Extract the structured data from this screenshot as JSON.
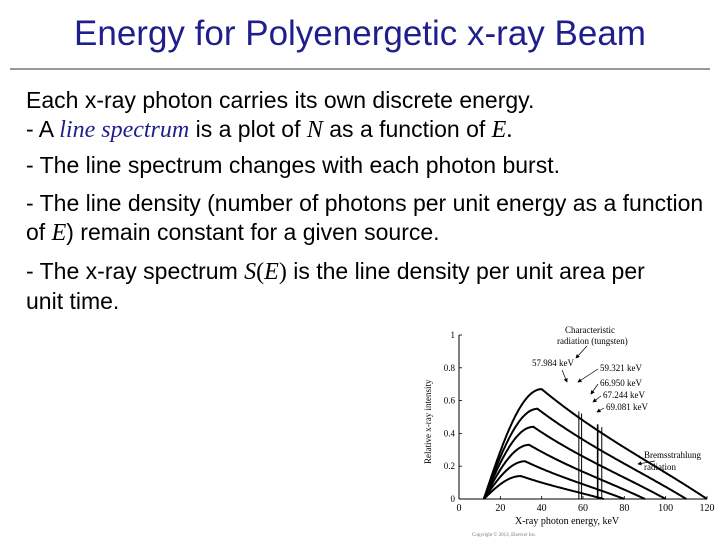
{
  "slide": {
    "title": "Energy for Polyenergetic x-ray Beam",
    "colors": {
      "title": "#1f1f8c",
      "accent": "#1f1f8c",
      "rule": "#999999"
    }
  },
  "body": {
    "p1": {
      "l1": "Each x-ray photon carries its own discrete energy.",
      "l2_a": "- A ",
      "l2_term": "line spectrum",
      "l2_b": " is a plot of ",
      "l2_N": "N",
      "l2_c": " as a function of ",
      "l2_E": "E",
      "l2_d": "."
    },
    "p2": "- The line spectrum changes with each photon burst.",
    "p3": {
      "a": "- The line density (number of photons per unit energy as a function of ",
      "E": "E",
      "b": ") remain constant for a given source."
    },
    "p4": {
      "a": "- The x-ray spectrum ",
      "S": "S",
      "paren_open": "(",
      "E": "E",
      "paren_close": ")",
      "b": " is the line density per unit area per unit time."
    }
  },
  "figure": {
    "xlabel": "X-ray photon energy, keV",
    "ylabel": "Relative x-ray intensity",
    "x_ticks": [
      "0",
      "20",
      "40",
      "60",
      "80",
      "100",
      "120"
    ],
    "y_ticks": [
      "0",
      "0.2",
      "0.4",
      "0.6",
      "0.8",
      "1"
    ],
    "annotations": {
      "characteristic_1": "Characteristic",
      "characteristic_2": "radiation (tungsten)",
      "e1": "57.984 keV",
      "e2": "59.321 keV",
      "e3": "66.950 keV",
      "e4": "67.244 keV",
      "e5": "69.081 keV",
      "brems_1": "Bremsstrahlung",
      "brems_2": "radiation"
    },
    "copyright": "Copyright © 2013, Elsevier Inc."
  },
  "chart_data": {
    "type": "line",
    "xlabel": "X-ray photon energy, keV",
    "ylabel": "Relative x-ray intensity",
    "xlim": [
      0,
      120
    ],
    "ylim": [
      0,
      1
    ],
    "x_ticks": [
      0,
      20,
      40,
      60,
      80,
      100,
      120
    ],
    "y_ticks": [
      0,
      0.2,
      0.4,
      0.6,
      0.8,
      1
    ],
    "series": [
      {
        "kVp": 120,
        "peak_x": 40,
        "peak_y": 0.67
      },
      {
        "kVp": 110,
        "peak_x": 38,
        "peak_y": 0.55
      },
      {
        "kVp": 100,
        "peak_x": 36,
        "peak_y": 0.44
      },
      {
        "kVp": 90,
        "peak_x": 34,
        "peak_y": 0.33
      },
      {
        "kVp": 80,
        "peak_x": 32,
        "peak_y": 0.23
      },
      {
        "kVp": 70,
        "peak_x": 30,
        "peak_y": 0.14
      }
    ],
    "characteristic_lines_keV": [
      57.984,
      59.321,
      66.95,
      67.244,
      69.081
    ]
  }
}
